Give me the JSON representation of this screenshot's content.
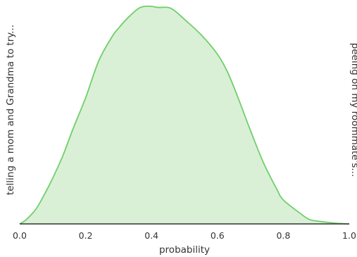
{
  "chart_data": {
    "type": "area",
    "title": "",
    "xlabel": "probability",
    "ylabel_left": "telling a mom and Grandma to try...",
    "ylabel_right": "peeing on my roommate's...",
    "xlim": [
      0,
      1
    ],
    "xticks": [
      "0.0",
      "0.2",
      "0.4",
      "0.6",
      "0.8",
      "1.0"
    ],
    "grid": false,
    "colors": {
      "line": "#6fcf6a",
      "fill": "#d9f0d6",
      "axis": "#333333",
      "text": "#333333"
    },
    "series": [
      {
        "x": [
          0.0,
          0.02,
          0.05,
          0.08,
          0.1,
          0.13,
          0.16,
          0.2,
          0.24,
          0.28,
          0.3,
          0.33,
          0.36,
          0.38,
          0.4,
          0.42,
          0.45,
          0.47,
          0.5,
          0.55,
          0.6,
          0.63,
          0.66,
          0.7,
          0.74,
          0.78,
          0.8,
          0.85,
          0.88,
          0.92,
          0.96,
          1.0
        ],
        "y": [
          0.0,
          0.02,
          0.07,
          0.15,
          0.21,
          0.31,
          0.43,
          0.58,
          0.75,
          0.86,
          0.9,
          0.95,
          0.99,
          1.0,
          1.0,
          0.995,
          0.995,
          0.98,
          0.94,
          0.87,
          0.78,
          0.7,
          0.59,
          0.43,
          0.28,
          0.16,
          0.11,
          0.05,
          0.02,
          0.01,
          0.003,
          0.0
        ]
      }
    ]
  }
}
